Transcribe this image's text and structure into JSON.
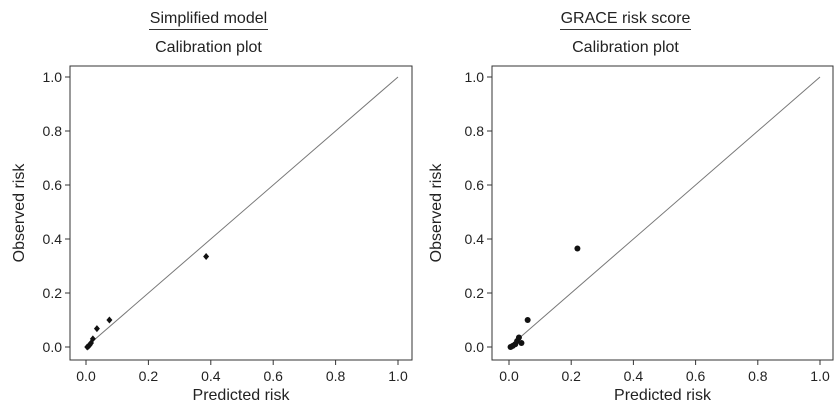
{
  "chart_data": [
    {
      "type": "scatter",
      "title": "Simplified model",
      "subtitle": "Calibration plot",
      "xlabel": "Predicted risk",
      "ylabel": "Observed risk",
      "xlim": [
        0,
        1
      ],
      "ylim": [
        0,
        1
      ],
      "xticks": [
        "0.0",
        "0.2",
        "0.4",
        "0.6",
        "0.8",
        "1.0"
      ],
      "yticks": [
        "0.0",
        "0.2",
        "0.4",
        "0.6",
        "0.8",
        "1.0"
      ],
      "reference_line": "y = x",
      "grid": false,
      "points": [
        {
          "x": 0.004,
          "y": 0.0
        },
        {
          "x": 0.008,
          "y": 0.003
        },
        {
          "x": 0.012,
          "y": 0.008
        },
        {
          "x": 0.016,
          "y": 0.015
        },
        {
          "x": 0.022,
          "y": 0.03
        },
        {
          "x": 0.035,
          "y": 0.068
        },
        {
          "x": 0.075,
          "y": 0.1
        },
        {
          "x": 0.385,
          "y": 0.335
        }
      ],
      "marker": "diamond"
    },
    {
      "type": "scatter",
      "title": "GRACE risk score",
      "subtitle": "Calibration plot",
      "xlabel": "Predicted risk",
      "ylabel": "Observed risk",
      "xlim": [
        0,
        1
      ],
      "ylim": [
        0,
        1
      ],
      "xticks": [
        "0.0",
        "0.2",
        "0.4",
        "0.6",
        "0.8",
        "1.0"
      ],
      "yticks": [
        "0.0",
        "0.2",
        "0.4",
        "0.6",
        "0.8",
        "1.0"
      ],
      "reference_line": "y = x",
      "grid": false,
      "points": [
        {
          "x": 0.005,
          "y": 0.0
        },
        {
          "x": 0.012,
          "y": 0.004
        },
        {
          "x": 0.02,
          "y": 0.01
        },
        {
          "x": 0.026,
          "y": 0.022
        },
        {
          "x": 0.032,
          "y": 0.035
        },
        {
          "x": 0.04,
          "y": 0.015
        },
        {
          "x": 0.06,
          "y": 0.1
        },
        {
          "x": 0.22,
          "y": 0.365
        }
      ],
      "marker": "circle"
    }
  ]
}
